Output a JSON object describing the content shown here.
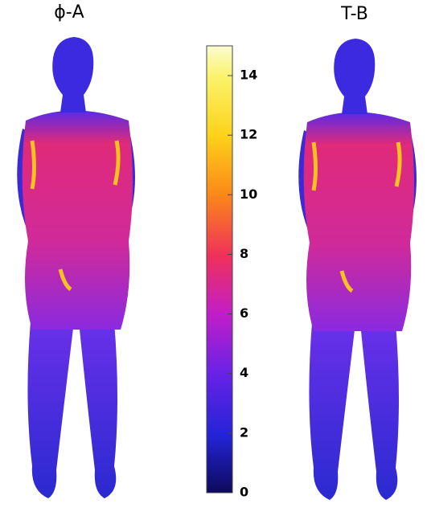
{
  "chart_data": {
    "type": "body-map",
    "panels": [
      {
        "title": "ϕ-A"
      },
      {
        "title": "T-B"
      }
    ],
    "colorbar": {
      "lim": [
        0,
        15
      ],
      "ticks": [
        0,
        2,
        4,
        6,
        8,
        10,
        12,
        14
      ]
    }
  }
}
